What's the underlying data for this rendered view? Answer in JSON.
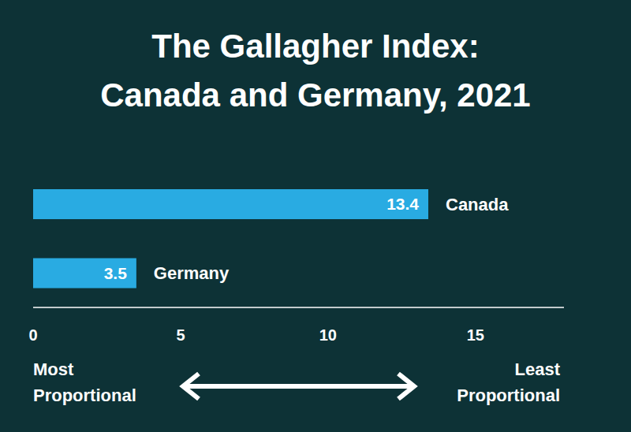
{
  "chart_data": {
    "type": "bar",
    "title": "The Gallagher Index: Canada and Germany, 2021",
    "categories": [
      "Canada",
      "Germany"
    ],
    "values": [
      13.4,
      3.5
    ],
    "color": "#29abe2",
    "orientation": "horizontal",
    "xlim": [
      0,
      18
    ],
    "xticks": [
      0,
      5,
      10,
      15
    ],
    "grid": false,
    "data_labels": true,
    "tick_labels": "x",
    "annotations": [
      "Most Proportional",
      "Least Proportional"
    ]
  }
}
